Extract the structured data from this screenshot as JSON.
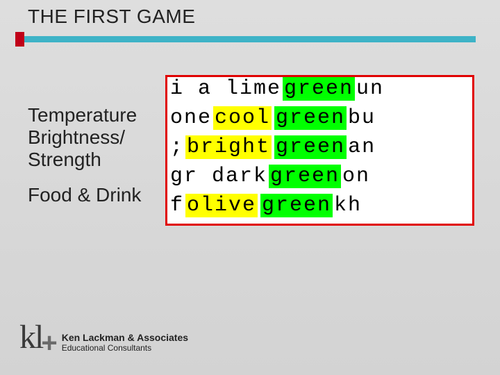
{
  "title": "THE FIRST GAME",
  "labels": {
    "line1": "Temperature",
    "line2": "Brightness/",
    "line3": "Strength",
    "line4": "Food & Drink"
  },
  "colors": {
    "accent_red": "#c00018",
    "bar_teal": "#3eb3c7",
    "box_border": "#e00000",
    "hl_yellow": "#ffff00",
    "hl_green": "#00ff00",
    "bg_top": "#dedede",
    "bg_bottom": "#d3d3d3"
  },
  "wordbox": {
    "rows": [
      {
        "cells": [
          {
            "text": "i a lime ",
            "hl": null
          },
          {
            "text": "green",
            "hl": "green"
          },
          {
            "text": " un",
            "hl": null
          }
        ]
      },
      {
        "cells": [
          {
            "text": "one ",
            "hl": null
          },
          {
            "text": "cool",
            "hl": "yellow"
          },
          {
            "text": "  ",
            "hl": null
          },
          {
            "text": "green",
            "hl": "green"
          },
          {
            "text": " bu",
            "hl": null
          }
        ]
      },
      {
        "cells": [
          {
            "text": "; ",
            "hl": null
          },
          {
            "text": "bright",
            "hl": "yellow"
          },
          {
            "text": " ",
            "hl": null
          },
          {
            "text": "green",
            "hl": "green"
          },
          {
            "text": " an",
            "hl": null
          }
        ]
      },
      {
        "cells": [
          {
            "text": "gr dark ",
            "hl": null
          },
          {
            "text": "green",
            "hl": "green"
          },
          {
            "text": " on",
            "hl": null
          }
        ]
      },
      {
        "cells": [
          {
            "text": "f ",
            "hl": null
          },
          {
            "text": "olive",
            "hl": "yellow"
          },
          {
            "text": " ",
            "hl": null
          },
          {
            "text": "green",
            "hl": "green"
          },
          {
            "text": " kh",
            "hl": null
          }
        ]
      }
    ]
  },
  "footer": {
    "logo_kl": "kl",
    "logo_plus": "+",
    "line1": "Ken Lackman & Associates",
    "line2": "Educational Consultants"
  }
}
